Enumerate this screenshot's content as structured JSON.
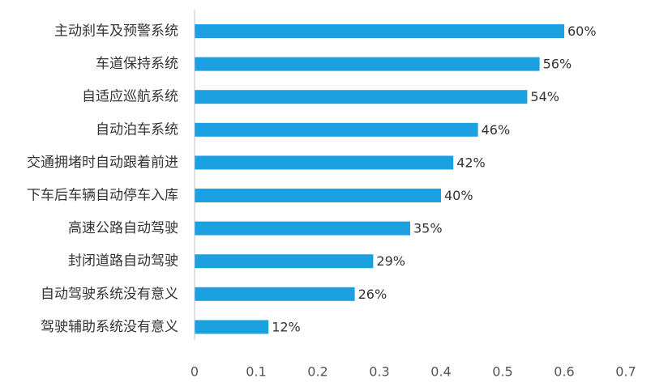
{
  "chart_data": {
    "type": "bar",
    "orientation": "horizontal",
    "title": "",
    "xlabel": "",
    "ylabel": "",
    "categories": [
      "主动刹车及预警系统",
      "车道保持系统",
      "自适应巡航系统",
      "自动泊车系统",
      "交通拥堵时自动跟着前进",
      "下车后车辆自动停车入库",
      "高速公路自动驾驶",
      "封闭道路自动驾驶",
      "自动驾驶系统没有意义",
      "驾驶辅助系统没有意义"
    ],
    "values": [
      0.6,
      0.56,
      0.54,
      0.46,
      0.42,
      0.4,
      0.35,
      0.29,
      0.26,
      0.12
    ],
    "data_labels": [
      "60%",
      "56%",
      "54%",
      "46%",
      "42%",
      "40%",
      "35%",
      "29%",
      "26%",
      "12%"
    ],
    "xlim": [
      0,
      0.7
    ],
    "xticks": [
      "0",
      "0.1",
      "0.2",
      "0.3",
      "0.4",
      "0.5",
      "0.6",
      "0.7"
    ],
    "grid": false,
    "legend": "none",
    "colors": {
      "bar": "#1BA1E2",
      "axis": "#BFBFBF",
      "category_text": "#333333",
      "tick_text": "#555555"
    }
  }
}
